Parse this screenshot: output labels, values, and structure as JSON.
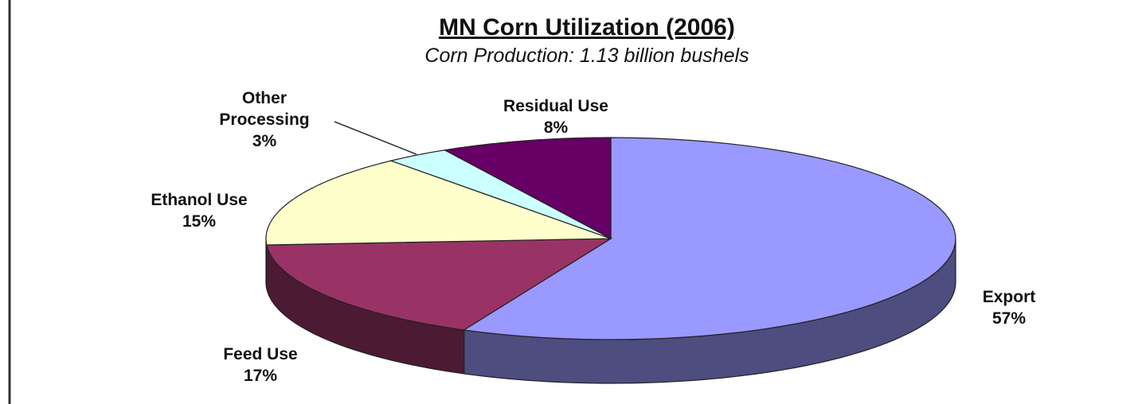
{
  "chart_data": {
    "type": "pie3d",
    "title": "MN Corn Utilization (2006)",
    "subtitle": "Corn Production: 1.13 billion bushels",
    "categories": [
      "Export",
      "Feed Use",
      "Ethanol Use",
      "Other Processing",
      "Residual Use"
    ],
    "values": [
      57,
      17,
      15,
      3,
      8
    ],
    "value_labels": [
      "57%",
      "17%",
      "15%",
      "3%",
      "8%"
    ],
    "colors": [
      "#9999ff",
      "#993366",
      "#ffffcc",
      "#ccffff",
      "#660066"
    ]
  }
}
